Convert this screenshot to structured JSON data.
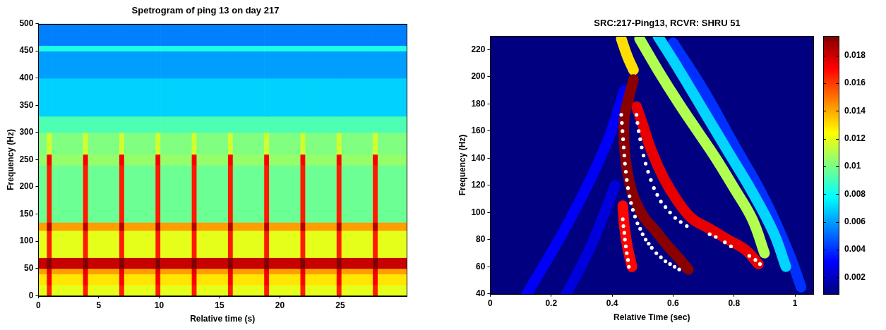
{
  "chart_data": [
    {
      "type": "heatmap",
      "title": "Spetrogram of ping 13 on day 217",
      "x_label": "Relative time (s)",
      "y_label": "Frequency (Hz)",
      "xlim": [
        0,
        30.5
      ],
      "xticks": [
        0,
        5,
        10,
        15,
        20,
        25
      ],
      "ylim": [
        0,
        500
      ],
      "yticks": [
        0,
        50,
        100,
        150,
        200,
        250,
        300,
        350,
        400,
        450,
        500
      ],
      "grid": false,
      "color": "jet",
      "value_range": [
        0,
        1
      ],
      "x_edges": [
        0,
        0.7,
        1.1,
        3.7,
        4.1,
        6.7,
        7.1,
        9.7,
        10.1,
        12.7,
        13.1,
        15.7,
        16.1,
        18.7,
        19.1,
        21.7,
        22.1,
        24.7,
        25.1,
        27.7,
        28.1,
        30.5
      ],
      "y_edges": [
        0,
        20,
        40,
        50,
        70,
        120,
        135,
        240,
        260,
        300,
        330,
        400,
        450,
        460,
        500
      ],
      "cells": [
        [
          0.6,
          0.85,
          0.6,
          0.85,
          0.6,
          0.85,
          0.6,
          0.85,
          0.6,
          0.85,
          0.6,
          0.85,
          0.6,
          0.85,
          0.6,
          0.85,
          0.6,
          0.85,
          0.6,
          0.85,
          0.6
        ],
        [
          0.65,
          0.88,
          0.65,
          0.88,
          0.65,
          0.88,
          0.65,
          0.88,
          0.65,
          0.88,
          0.65,
          0.88,
          0.65,
          0.88,
          0.65,
          0.88,
          0.65,
          0.88,
          0.65,
          0.88,
          0.65
        ],
        [
          0.72,
          0.9,
          0.72,
          0.9,
          0.72,
          0.9,
          0.72,
          0.9,
          0.72,
          0.9,
          0.72,
          0.9,
          0.72,
          0.9,
          0.72,
          0.9,
          0.72,
          0.9,
          0.72,
          0.9,
          0.72
        ],
        [
          0.93,
          1.0,
          0.93,
          1.0,
          0.93,
          1.0,
          0.93,
          1.0,
          0.93,
          1.0,
          0.93,
          1.0,
          0.93,
          1.0,
          0.93,
          1.0,
          0.93,
          1.0,
          0.93,
          1.0,
          0.93
        ],
        [
          0.6,
          0.85,
          0.6,
          0.85,
          0.6,
          0.85,
          0.6,
          0.85,
          0.6,
          0.85,
          0.6,
          0.85,
          0.6,
          0.85,
          0.6,
          0.85,
          0.6,
          0.85,
          0.6,
          0.85,
          0.6
        ],
        [
          0.72,
          0.95,
          0.72,
          0.95,
          0.72,
          0.95,
          0.72,
          0.95,
          0.72,
          0.95,
          0.72,
          0.95,
          0.72,
          0.95,
          0.72,
          0.95,
          0.72,
          0.95,
          0.72,
          0.95,
          0.72
        ],
        [
          0.48,
          0.85,
          0.48,
          0.85,
          0.48,
          0.85,
          0.48,
          0.85,
          0.48,
          0.85,
          0.48,
          0.85,
          0.48,
          0.85,
          0.48,
          0.85,
          0.48,
          0.85,
          0.48,
          0.85,
          0.48
        ],
        [
          0.52,
          0.88,
          0.52,
          0.88,
          0.52,
          0.88,
          0.52,
          0.88,
          0.52,
          0.88,
          0.52,
          0.88,
          0.52,
          0.88,
          0.52,
          0.88,
          0.52,
          0.88,
          0.52,
          0.88,
          0.52
        ],
        [
          0.5,
          0.58,
          0.5,
          0.58,
          0.5,
          0.58,
          0.5,
          0.58,
          0.5,
          0.58,
          0.5,
          0.58,
          0.5,
          0.58,
          0.5,
          0.58,
          0.5,
          0.58,
          0.5,
          0.58,
          0.5
        ],
        [
          0.45,
          0.45,
          0.45,
          0.45,
          0.45,
          0.45,
          0.45,
          0.45,
          0.45,
          0.45,
          0.45,
          0.45,
          0.45,
          0.45,
          0.45,
          0.45,
          0.45,
          0.45,
          0.45,
          0.45,
          0.45
        ],
        [
          0.33,
          0.33,
          0.33,
          0.33,
          0.33,
          0.33,
          0.33,
          0.33,
          0.33,
          0.33,
          0.33,
          0.33,
          0.33,
          0.33,
          0.33,
          0.33,
          0.33,
          0.33,
          0.33,
          0.33,
          0.33
        ],
        [
          0.28,
          0.28,
          0.28,
          0.28,
          0.28,
          0.28,
          0.28,
          0.28,
          0.28,
          0.28,
          0.28,
          0.28,
          0.28,
          0.28,
          0.28,
          0.28,
          0.28,
          0.28,
          0.28,
          0.28,
          0.28
        ],
        [
          0.4,
          0.4,
          0.4,
          0.4,
          0.4,
          0.4,
          0.4,
          0.4,
          0.4,
          0.4,
          0.4,
          0.4,
          0.4,
          0.4,
          0.4,
          0.4,
          0.4,
          0.4,
          0.4,
          0.4,
          0.4
        ],
        [
          0.25,
          0.25,
          0.25,
          0.25,
          0.25,
          0.25,
          0.25,
          0.25,
          0.25,
          0.25,
          0.25,
          0.25,
          0.25,
          0.25,
          0.25,
          0.25,
          0.25,
          0.25,
          0.25,
          0.25,
          0.25
        ]
      ]
    },
    {
      "type": "ridge",
      "title": "SRC:217-Ping13, RCVR: SHRU 51",
      "x_label": "Relative Time (sec)",
      "y_label": "Frequency (Hz)",
      "xlim": [
        0,
        1.06
      ],
      "xticks": [
        0,
        0.2,
        0.4,
        0.6,
        0.8,
        1
      ],
      "ylim": [
        40,
        230
      ],
      "yticks": [
        40,
        60,
        80,
        100,
        120,
        140,
        160,
        180,
        200,
        220
      ],
      "grid": false,
      "color": "jet",
      "colorbar": {
        "range": [
          0.0008,
          0.0194
        ],
        "ticks": [
          0.002,
          0.004,
          0.006,
          0.008,
          0.01,
          0.012,
          0.014,
          0.016,
          0.018
        ]
      },
      "ridges": [
        {
          "value": 0.0025,
          "points": [
            [
              0.25,
              40
            ],
            [
              0.33,
              75
            ],
            [
              0.41,
              120
            ]
          ]
        },
        {
          "value": 0.003,
          "points": [
            [
              0.12,
              40
            ],
            [
              0.25,
              90
            ],
            [
              0.38,
              150
            ],
            [
              0.44,
              190
            ]
          ]
        },
        {
          "value": 0.004,
          "points": [
            [
              0.6,
              225
            ],
            [
              0.7,
              190
            ],
            [
              0.8,
              150
            ],
            [
              0.9,
              110
            ],
            [
              0.98,
              70
            ],
            [
              1.02,
              45
            ]
          ]
        },
        {
          "value": 0.007,
          "points": [
            [
              0.55,
              230
            ],
            [
              0.62,
              205
            ],
            [
              0.7,
              175
            ],
            [
              0.78,
              145
            ],
            [
              0.86,
              115
            ],
            [
              0.93,
              85
            ],
            [
              0.97,
              60
            ]
          ]
        },
        {
          "value": 0.011,
          "points": [
            [
              0.49,
              228
            ],
            [
              0.55,
              205
            ],
            [
              0.62,
              180
            ],
            [
              0.68,
              160
            ],
            [
              0.74,
              140
            ],
            [
              0.8,
              118
            ],
            [
              0.86,
              95
            ],
            [
              0.9,
              70
            ]
          ]
        },
        {
          "value": 0.013,
          "points": [
            [
              0.43,
              228
            ],
            [
              0.45,
              215
            ],
            [
              0.47,
              205
            ]
          ]
        },
        {
          "value": 0.0175,
          "points": [
            [
              0.48,
              178
            ],
            [
              0.5,
              165
            ],
            [
              0.53,
              145
            ],
            [
              0.57,
              125
            ],
            [
              0.61,
              110
            ],
            [
              0.66,
              96
            ],
            [
              0.72,
              88
            ],
            [
              0.78,
              80
            ],
            [
              0.84,
              72
            ],
            [
              0.88,
              62
            ]
          ]
        },
        {
          "value": 0.017,
          "points": [
            [
              0.435,
              105
            ],
            [
              0.44,
              90
            ],
            [
              0.45,
              75
            ],
            [
              0.465,
              60
            ]
          ]
        },
        {
          "value": 0.0192,
          "points": [
            [
              0.47,
              198
            ],
            [
              0.455,
              185
            ],
            [
              0.44,
              170
            ],
            [
              0.44,
              150
            ],
            [
              0.45,
              130
            ],
            [
              0.47,
              112
            ],
            [
              0.5,
              98
            ],
            [
              0.54,
              87
            ],
            [
              0.58,
              76
            ],
            [
              0.62,
              66
            ],
            [
              0.65,
              58
            ]
          ]
        }
      ],
      "dots": {
        "color": "#ffffff",
        "marker": "circle",
        "points": [
          [
            0.43,
            172
          ],
          [
            0.432,
            166
          ],
          [
            0.434,
            160
          ],
          [
            0.436,
            154
          ],
          [
            0.438,
            148
          ],
          [
            0.44,
            142
          ],
          [
            0.442,
            136
          ],
          [
            0.445,
            130
          ],
          [
            0.448,
            124
          ],
          [
            0.452,
            118
          ],
          [
            0.457,
            112
          ],
          [
            0.462,
            107
          ],
          [
            0.468,
            102
          ],
          [
            0.475,
            97
          ],
          [
            0.483,
            92
          ],
          [
            0.492,
            88
          ],
          [
            0.5,
            84
          ],
          [
            0.51,
            80
          ],
          [
            0.52,
            77
          ],
          [
            0.53,
            74
          ],
          [
            0.545,
            70
          ],
          [
            0.56,
            67
          ],
          [
            0.575,
            64
          ],
          [
            0.59,
            62
          ],
          [
            0.605,
            60
          ],
          [
            0.62,
            58
          ],
          [
            0.435,
            95
          ],
          [
            0.437,
            90
          ],
          [
            0.44,
            85
          ],
          [
            0.442,
            80
          ],
          [
            0.445,
            75
          ],
          [
            0.448,
            70
          ],
          [
            0.452,
            65
          ],
          [
            0.455,
            60
          ],
          [
            0.48,
            172
          ],
          [
            0.483,
            166
          ],
          [
            0.487,
            160
          ],
          [
            0.492,
            154
          ],
          [
            0.497,
            148
          ],
          [
            0.503,
            142
          ],
          [
            0.51,
            136
          ],
          [
            0.518,
            130
          ],
          [
            0.527,
            124
          ],
          [
            0.537,
            118
          ],
          [
            0.548,
            113
          ],
          [
            0.56,
            108
          ],
          [
            0.575,
            104
          ],
          [
            0.59,
            100
          ],
          [
            0.607,
            96
          ],
          [
            0.625,
            93
          ],
          [
            0.645,
            90
          ],
          [
            0.72,
            84
          ],
          [
            0.74,
            82
          ],
          [
            0.77,
            78
          ],
          [
            0.79,
            75
          ],
          [
            0.85,
            68
          ],
          [
            0.87,
            65
          ],
          [
            0.885,
            62
          ]
        ]
      }
    }
  ]
}
